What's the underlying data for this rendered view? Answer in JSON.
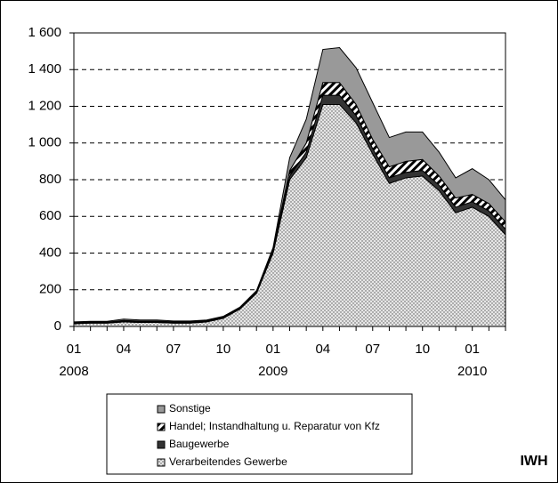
{
  "chart_data": {
    "type": "stacked_area",
    "categories": [
      "01",
      null,
      null,
      "04",
      null,
      null,
      "07",
      null,
      null,
      "10",
      null,
      null,
      "01",
      null,
      null,
      "04",
      null,
      null,
      "07",
      null,
      null,
      "10",
      null,
      null,
      "01",
      null,
      null
    ],
    "year_labels": [
      "2008",
      null,
      null,
      null,
      null,
      null,
      null,
      null,
      null,
      null,
      null,
      null,
      "2009",
      null,
      null,
      null,
      null,
      null,
      null,
      null,
      null,
      null,
      null,
      null,
      "2010",
      null,
      null
    ],
    "series": [
      {
        "name": "Verarbeitendes Gewerbe",
        "color": "#d9d9d9",
        "pattern": "dotted",
        "values": [
          15,
          18,
          18,
          25,
          22,
          22,
          18,
          18,
          25,
          45,
          95,
          180,
          400,
          800,
          920,
          1210,
          1210,
          1110,
          940,
          780,
          810,
          820,
          740,
          620,
          650,
          600,
          500
        ]
      },
      {
        "name": "Baugewerbe",
        "color": "#333333",
        "values": [
          3,
          3,
          3,
          5,
          4,
          4,
          4,
          4,
          3,
          3,
          3,
          5,
          10,
          20,
          30,
          50,
          50,
          40,
          30,
          30,
          30,
          30,
          30,
          30,
          30,
          30,
          30
        ]
      },
      {
        "name": "Handel; Instandhaltung u. Reparatur von Kfz",
        "color": "#ffffff",
        "pattern": "striped",
        "values": [
          2,
          2,
          2,
          3,
          3,
          3,
          3,
          3,
          3,
          3,
          3,
          5,
          15,
          30,
          50,
          70,
          70,
          60,
          50,
          60,
          60,
          60,
          50,
          50,
          40,
          40,
          40
        ]
      },
      {
        "name": "Sonstige",
        "color": "#999999",
        "values": [
          5,
          5,
          5,
          7,
          6,
          6,
          5,
          5,
          4,
          4,
          4,
          5,
          5,
          70,
          130,
          180,
          190,
          200,
          200,
          160,
          160,
          150,
          130,
          110,
          140,
          130,
          120
        ]
      }
    ],
    "ylim": [
      0,
      1600
    ],
    "yticks": [
      0,
      200,
      400,
      600,
      800,
      {
        "value": 1000,
        "label": "1 000"
      },
      {
        "value": 1200,
        "label": "1 200"
      },
      {
        "value": 1400,
        "label": "1 400"
      },
      {
        "value": 1600,
        "label": "1 600"
      }
    ],
    "grid": true,
    "legend": "bottom",
    "source": "IWH"
  }
}
